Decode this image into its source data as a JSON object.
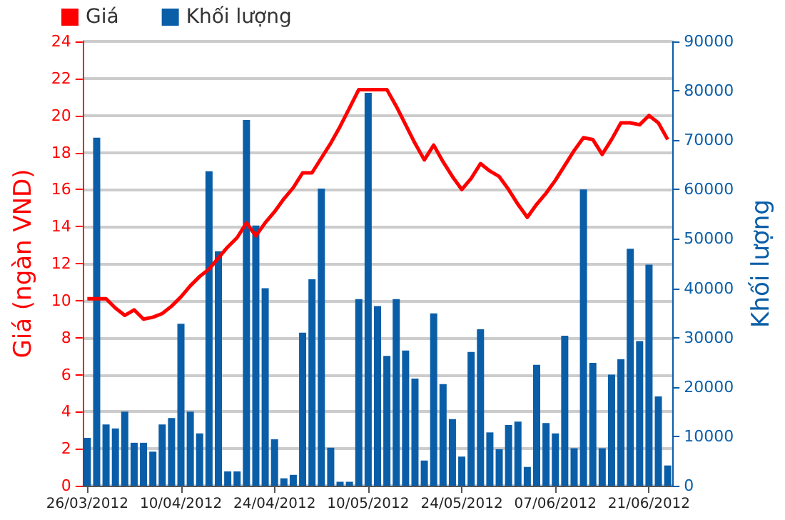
{
  "chart_data": {
    "type": "bar",
    "categories": [
      "26/03/2012",
      null,
      null,
      null,
      null,
      null,
      null,
      null,
      null,
      null,
      "10/04/2012",
      null,
      null,
      null,
      null,
      null,
      null,
      null,
      null,
      null,
      "24/04/2012",
      null,
      null,
      null,
      null,
      null,
      null,
      null,
      null,
      null,
      "10/05/2012",
      null,
      null,
      null,
      null,
      null,
      null,
      null,
      null,
      null,
      "24/05/2012",
      null,
      null,
      null,
      null,
      null,
      null,
      null,
      null,
      null,
      "07/06/2012",
      null,
      null,
      null,
      null,
      null,
      null,
      null,
      null,
      null,
      "21/06/2012",
      null,
      null
    ],
    "series": [
      {
        "name": "Giá",
        "type": "line",
        "color": "#ff0000",
        "values": [
          10.1,
          10.1,
          10.1,
          9.6,
          9.2,
          9.5,
          9.0,
          9.1,
          9.3,
          9.7,
          10.2,
          10.8,
          11.3,
          11.7,
          12.3,
          12.9,
          13.4,
          14.2,
          13.5,
          14.2,
          14.8,
          15.5,
          16.1,
          16.9,
          16.9,
          17.7,
          18.5,
          19.4,
          20.4,
          21.4,
          21.4,
          21.4,
          21.4,
          20.5,
          19.5,
          18.5,
          17.6,
          18.4,
          17.5,
          16.7,
          16.0,
          16.6,
          17.4,
          17.0,
          16.7,
          16.0,
          15.2,
          14.5,
          15.2,
          15.8,
          16.5,
          17.3,
          18.1,
          18.8,
          18.7,
          17.9,
          18.7,
          19.6,
          19.6,
          19.5,
          20.0,
          19.6,
          18.7
        ]
      },
      {
        "name": "Khối lượng",
        "axis": "y2",
        "color": "#0a5ea8",
        "values": [
          9700,
          70500,
          12400,
          11600,
          15000,
          8700,
          8700,
          6900,
          12400,
          13700,
          32800,
          15000,
          10600,
          63700,
          47500,
          2900,
          2900,
          74100,
          52700,
          40000,
          9400,
          1500,
          2200,
          31000,
          41800,
          60200,
          7700,
          800,
          800,
          37800,
          79600,
          36400,
          26300,
          37800,
          27400,
          21700,
          5100,
          34900,
          20600,
          13500,
          5900,
          27100,
          31700,
          10800,
          7400,
          12300,
          13000,
          3800,
          24500,
          12700,
          10600,
          30400,
          7600,
          60000,
          24900,
          7600,
          22500,
          25600,
          48000,
          29300,
          44800,
          18100,
          4100
        ]
      }
    ],
    "ylabel": "Giá (ngàn VND)",
    "y2label": "Khối lượng",
    "ylim": [
      0,
      24
    ],
    "yticks": [
      0,
      2,
      4,
      6,
      8,
      10,
      12,
      14,
      16,
      18,
      20,
      22,
      24
    ],
    "y2lim": [
      0,
      90000
    ],
    "y2ticks": [
      0,
      10000,
      20000,
      30000,
      40000,
      50000,
      60000,
      70000,
      80000,
      90000
    ],
    "grid": "y",
    "legend": "top left",
    "marker": "none"
  }
}
